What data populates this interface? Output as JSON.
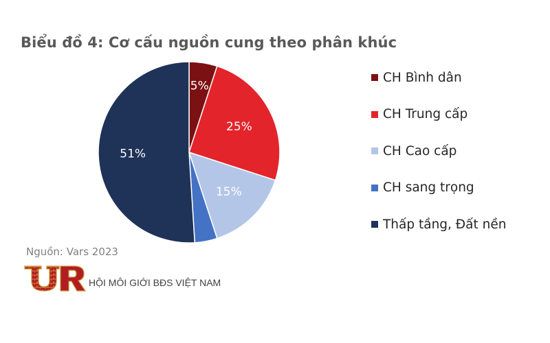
{
  "title": "Biểu đồ 4: Cơ cấu nguồn cung theo phân khúc",
  "source": "Nguồn: Vars 2023",
  "logo": {
    "org_name": "HỘI MÔI GIỚI BĐS VIỆT NAM",
    "icon": "vars-logo-icon"
  },
  "chart_data": {
    "type": "pie",
    "categories": [
      "CH Bình dân",
      "CH Trung cấp",
      "CH Cao cấp",
      "CH sang trọng",
      "Thấp tầng, Đất nền"
    ],
    "values": [
      5,
      25,
      15,
      4,
      51
    ],
    "labels": [
      "5%",
      "25%",
      "15%",
      "",
      "51%"
    ],
    "colors": [
      "#7b1113",
      "#e3242b",
      "#b4c6e7",
      "#4472c4",
      "#1f3257"
    ],
    "label_colors": [
      "#ffffff",
      "#ffffff",
      "#ffffff",
      "#ffffff",
      "#ffffff"
    ],
    "legend_position": "right",
    "start_angle_deg": 0,
    "direction": "clockwise"
  }
}
